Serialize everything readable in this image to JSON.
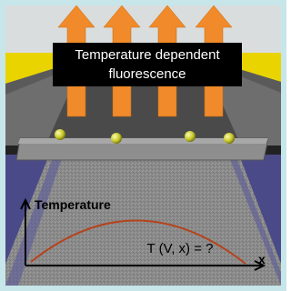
{
  "label": {
    "lines": [
      "Temperature dependent",
      "fluorescence"
    ]
  },
  "plot": {
    "y_axis_label": "Temperature",
    "x_axis_label": "x",
    "equation": "T (V, x) = ?"
  }
}
